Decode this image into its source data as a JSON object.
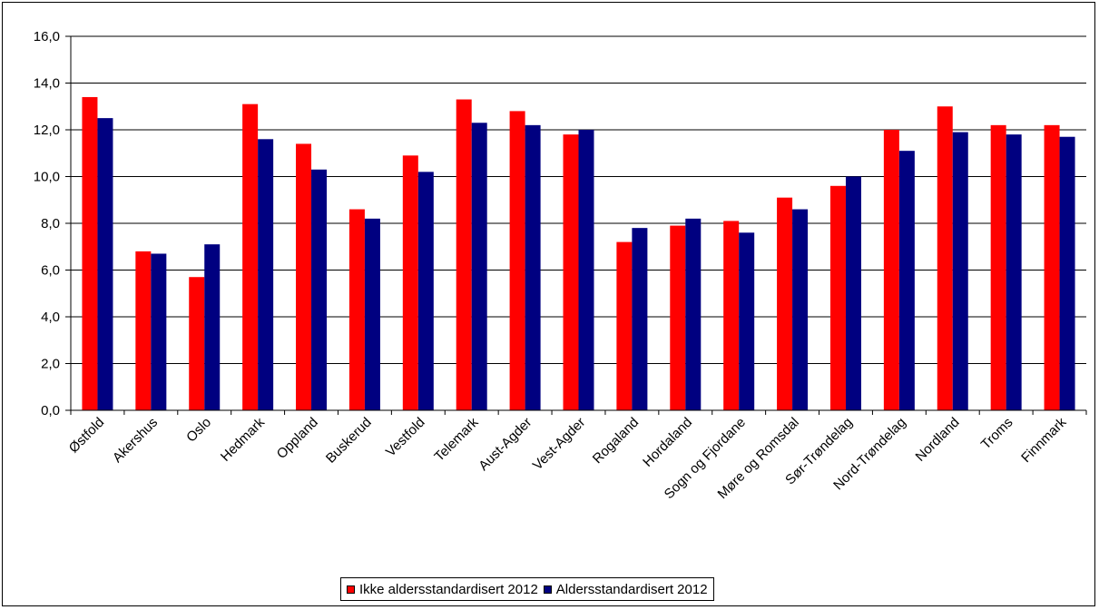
{
  "chart_data": {
    "type": "bar",
    "title": "",
    "xlabel": "",
    "ylabel": "",
    "ylim": [
      0,
      16
    ],
    "yticks": [
      "0,0",
      "2,0",
      "4,0",
      "6,0",
      "8,0",
      "10,0",
      "12,0",
      "14,0",
      "16,0"
    ],
    "grid": true,
    "legend_position": "bottom",
    "categories": [
      "Østfold",
      "Akershus",
      "Oslo",
      "Hedmark",
      "Oppland",
      "Buskerud",
      "Vestfold",
      "Telemark",
      "Aust-Agder",
      "Vest-Agder",
      "Rogaland",
      "Hordaland",
      "Sogn og Fjordane",
      "Møre og Romsdal",
      "Sør-Trøndelag",
      "Nord-Trøndelag",
      "Nordland",
      "Troms",
      "Finnmark"
    ],
    "series": [
      {
        "name": "Ikke aldersstandardisert 2012",
        "color": "#ff0000",
        "values": [
          13.4,
          6.8,
          5.7,
          13.1,
          11.4,
          8.6,
          10.9,
          13.3,
          12.8,
          11.8,
          7.2,
          7.9,
          8.1,
          9.1,
          9.6,
          12.0,
          13.0,
          12.2,
          12.2
        ]
      },
      {
        "name": "Aldersstandardisert 2012",
        "color": "#000080",
        "values": [
          12.5,
          6.7,
          7.1,
          11.6,
          10.3,
          8.2,
          10.2,
          12.3,
          12.2,
          12.0,
          7.8,
          8.2,
          7.6,
          8.6,
          10.0,
          11.1,
          11.9,
          11.8,
          11.7
        ]
      }
    ]
  }
}
